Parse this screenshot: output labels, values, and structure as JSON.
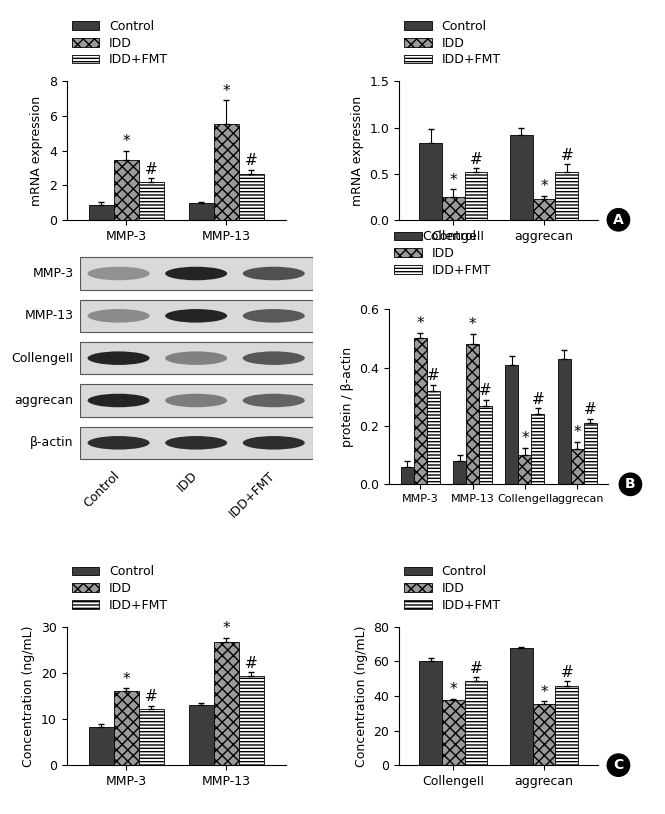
{
  "chart_data": [
    {
      "type": "bar",
      "y_label": "mRNA expression",
      "categories": [
        "MMP-3",
        "MMP-13"
      ],
      "ylim": [
        0,
        8
      ],
      "yticks": [
        0,
        2,
        4,
        6,
        8
      ],
      "legend": "upper left",
      "series": [
        {
          "name": "Control",
          "color": "#3d3d3d",
          "values": [
            0.85,
            0.95
          ],
          "errors": [
            0.2,
            0.1
          ]
        },
        {
          "name": "IDD",
          "color": "#9a9a9a",
          "values": [
            3.45,
            5.55
          ],
          "errors": [
            0.55,
            1.35
          ],
          "annotations": [
            "*",
            "*"
          ]
        },
        {
          "name": "IDD+FMT",
          "color": "#ffffff",
          "values": [
            2.2,
            2.65
          ],
          "errors": [
            0.2,
            0.25
          ],
          "annotations": [
            "#",
            "#"
          ]
        }
      ]
    },
    {
      "type": "bar",
      "y_label": "mRNA expression",
      "annotation": "A",
      "categories": [
        "CollengeII",
        "aggrecan"
      ],
      "ylim": [
        0,
        1.5
      ],
      "yticks": [
        {
          "value": 0,
          "label": "0.0"
        },
        0.5,
        {
          "value": 1,
          "label": "1.0"
        },
        1.5
      ],
      "legend": "upper left",
      "series": [
        {
          "name": "Control",
          "color": "#3d3d3d",
          "values": [
            0.83,
            0.92
          ],
          "errors": [
            0.15,
            0.08
          ]
        },
        {
          "name": "IDD",
          "color": "#9a9a9a",
          "values": [
            0.25,
            0.23
          ],
          "errors": [
            0.08,
            0.03
          ],
          "annotations": [
            "*",
            "*"
          ]
        },
        {
          "name": "IDD+FMT",
          "color": "#ffffff",
          "values": [
            0.52,
            0.52
          ],
          "errors": [
            0.04,
            0.08
          ],
          "annotations": [
            "#",
            "#"
          ]
        }
      ]
    },
    {
      "type": "bar",
      "y_label": "protein / β-actin",
      "annotation": "B",
      "categories": [
        "MMP-3",
        "MMP-13",
        "CollengeII",
        "aggrecan"
      ],
      "ylim": [
        0,
        0.6
      ],
      "yticks": [
        {
          "value": 0,
          "label": "0.0"
        },
        0.2,
        0.4,
        0.6
      ],
      "legend": "upper left",
      "series": [
        {
          "name": "Control",
          "color": "#3d3d3d",
          "values": [
            0.06,
            0.08,
            0.41,
            0.43
          ],
          "errors": [
            0.02,
            0.02,
            0.03,
            0.03
          ]
        },
        {
          "name": "IDD",
          "color": "#9a9a9a",
          "values": [
            0.5,
            0.48,
            0.1,
            0.12
          ],
          "errors": [
            0.02,
            0.035,
            0.025,
            0.025
          ],
          "annotations": [
            "*",
            "*",
            "*",
            "*"
          ]
        },
        {
          "name": "IDD+FMT",
          "color": "#ffffff",
          "values": [
            0.32,
            0.27,
            0.24,
            0.21
          ],
          "errors": [
            0.02,
            0.02,
            0.02,
            0.015
          ],
          "annotations": [
            "#",
            "#",
            "#",
            "#"
          ]
        }
      ]
    },
    {
      "type": "bar",
      "y_label": "Concentration (ng/mL)",
      "categories": [
        "MMP-3",
        "MMP-13"
      ],
      "ylim": [
        0,
        30
      ],
      "yticks": [
        0,
        10,
        20,
        30
      ],
      "legend": "upper left",
      "series": [
        {
          "name": "Control",
          "color": "#3d3d3d",
          "values": [
            8.3,
            13.1
          ],
          "errors": [
            0.6,
            0.3
          ]
        },
        {
          "name": "IDD",
          "color": "#9a9a9a",
          "values": [
            16.1,
            26.8
          ],
          "errors": [
            0.6,
            0.8
          ],
          "annotations": [
            "*",
            "*"
          ]
        },
        {
          "name": "IDD+FMT",
          "color": "#ffffff",
          "values": [
            12.1,
            19.3
          ],
          "errors": [
            0.8,
            0.8
          ],
          "annotations": [
            "#",
            "#"
          ]
        }
      ]
    },
    {
      "type": "bar",
      "y_label": "Concentration (ng/mL)",
      "annotation": "C",
      "categories": [
        "CollengeII",
        "aggrecan"
      ],
      "ylim": [
        0,
        80
      ],
      "yticks": [
        0,
        20,
        40,
        60,
        80
      ],
      "legend": "upper left",
      "series": [
        {
          "name": "Control",
          "color": "#3d3d3d",
          "values": [
            60.5,
            67.5
          ],
          "errors": [
            1.5,
            1.0
          ]
        },
        {
          "name": "IDD",
          "color": "#9a9a9a",
          "values": [
            37.5,
            35.5
          ],
          "errors": [
            1.0,
            1.5
          ],
          "annotations": [
            "*",
            "*"
          ]
        },
        {
          "name": "IDD+FMT",
          "color": "#ffffff",
          "values": [
            48.5,
            46.0
          ],
          "errors": [
            2.5,
            2.5
          ],
          "annotations": [
            "#",
            "#"
          ]
        }
      ]
    }
  ],
  "blot": {
    "rows": [
      "MMP-3",
      "MMP-13",
      "CollengeII",
      "aggrecan",
      "β-actin"
    ],
    "lanes": [
      "Control",
      "IDD",
      "IDD+FMT"
    ]
  }
}
